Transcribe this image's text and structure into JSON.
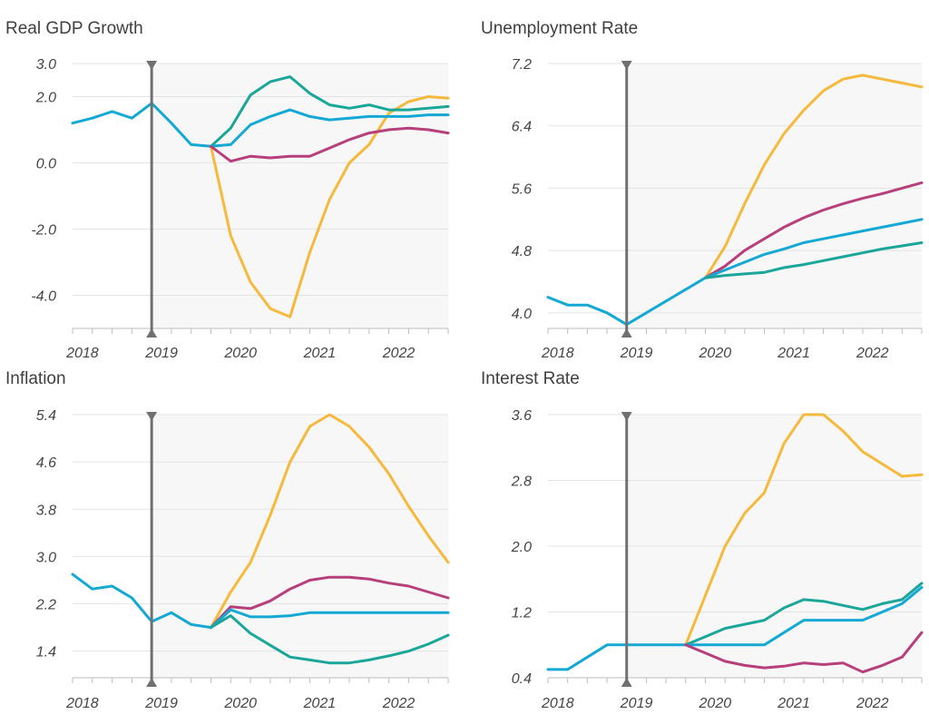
{
  "colors": {
    "yellow": "#f6b93b",
    "teal": "#1aa79a",
    "magenta": "#b73f7c",
    "blue": "#14a9d4",
    "marker": "#707070",
    "shade": "#f7f7f7",
    "grid": "#e3e3e3"
  },
  "chart_data": [
    {
      "type": "line",
      "title": "Real GDP Growth",
      "xlabel": "",
      "ylabel": "",
      "x_labels": [
        "2018",
        "2019",
        "2020",
        "2021",
        "2022"
      ],
      "x_label_positions": [
        0.5,
        4.5,
        8.5,
        12.5,
        16.5
      ],
      "x_count": 20,
      "marker_x": 4,
      "shade_from_x": 4,
      "ylim": [
        -5.0,
        3.0
      ],
      "yticks": [
        3.0,
        2.0,
        0.0,
        -2.0,
        -4.0
      ],
      "ytick_labels": [
        "3.0",
        "2.0",
        "0.0",
        "-2.0",
        "-4.0"
      ],
      "series": [
        {
          "name": "history",
          "color": "blue",
          "start": 0,
          "values": [
            1.2,
            1.35,
            1.55,
            1.35,
            1.8,
            1.2,
            0.55,
            0.5
          ]
        },
        {
          "name": "scenario-yellow",
          "color": "yellow",
          "start": 7,
          "values": [
            0.5,
            -2.2,
            -3.6,
            -4.4,
            -4.65,
            -2.7,
            -1.1,
            0.0,
            0.55,
            1.5,
            1.85,
            2.0,
            1.95
          ]
        },
        {
          "name": "scenario-teal",
          "color": "teal",
          "start": 7,
          "values": [
            0.5,
            1.05,
            2.05,
            2.45,
            2.6,
            2.1,
            1.75,
            1.65,
            1.75,
            1.6,
            1.6,
            1.65,
            1.7
          ]
        },
        {
          "name": "scenario-blue",
          "color": "blue",
          "start": 7,
          "values": [
            0.5,
            0.55,
            1.15,
            1.4,
            1.6,
            1.4,
            1.3,
            1.35,
            1.4,
            1.4,
            1.4,
            1.45,
            1.45
          ]
        },
        {
          "name": "scenario-magenta",
          "color": "magenta",
          "start": 7,
          "values": [
            0.5,
            0.05,
            0.2,
            0.15,
            0.2,
            0.2,
            0.45,
            0.7,
            0.9,
            1.0,
            1.05,
            1.0,
            0.9
          ]
        }
      ]
    },
    {
      "type": "line",
      "title": "Unemployment Rate",
      "xlabel": "",
      "ylabel": "",
      "x_labels": [
        "2018",
        "2019",
        "2020",
        "2021",
        "2022"
      ],
      "x_label_positions": [
        0.5,
        4.5,
        8.5,
        12.5,
        16.5
      ],
      "x_count": 20,
      "marker_x": 4,
      "shade_from_x": 4,
      "ylim": [
        3.8,
        7.2
      ],
      "yticks": [
        7.2,
        6.4,
        5.6,
        4.8,
        4.0
      ],
      "ytick_labels": [
        "7.2",
        "6.4",
        "5.6",
        "4.8",
        "4.0"
      ],
      "series": [
        {
          "name": "history",
          "color": "blue",
          "start": 0,
          "values": [
            4.2,
            4.1,
            4.1,
            4.0,
            3.85,
            4.0,
            4.15,
            4.3,
            4.45
          ]
        },
        {
          "name": "scenario-yellow",
          "color": "yellow",
          "start": 8,
          "values": [
            4.45,
            4.85,
            5.4,
            5.9,
            6.3,
            6.6,
            6.85,
            7.0,
            7.05,
            7.0,
            6.95,
            6.9
          ]
        },
        {
          "name": "scenario-magenta",
          "color": "magenta",
          "start": 8,
          "values": [
            4.45,
            4.6,
            4.8,
            4.95,
            5.1,
            5.22,
            5.32,
            5.4,
            5.47,
            5.53,
            5.6,
            5.67
          ]
        },
        {
          "name": "scenario-blue",
          "color": "blue",
          "start": 8,
          "values": [
            4.45,
            4.55,
            4.65,
            4.75,
            4.82,
            4.9,
            4.95,
            5.0,
            5.05,
            5.1,
            5.15,
            5.2
          ]
        },
        {
          "name": "scenario-teal",
          "color": "teal",
          "start": 8,
          "values": [
            4.45,
            4.48,
            4.5,
            4.52,
            4.58,
            4.62,
            4.67,
            4.72,
            4.77,
            4.82,
            4.86,
            4.9
          ]
        }
      ]
    },
    {
      "type": "line",
      "title": "Inflation",
      "xlabel": "",
      "ylabel": "",
      "x_labels": [
        "2018",
        "2019",
        "2020",
        "2021",
        "2022"
      ],
      "x_label_positions": [
        0.5,
        4.5,
        8.5,
        12.5,
        16.5
      ],
      "x_count": 20,
      "marker_x": 4,
      "shade_from_x": 4,
      "ylim": [
        0.95,
        5.4
      ],
      "yticks": [
        5.4,
        4.6,
        3.8,
        3.0,
        2.2,
        1.4
      ],
      "ytick_labels": [
        "5.4",
        "4.6",
        "3.8",
        "3.0",
        "2.2",
        "1.4"
      ],
      "series": [
        {
          "name": "history",
          "color": "blue",
          "start": 0,
          "values": [
            2.7,
            2.45,
            2.5,
            2.3,
            1.9,
            2.05,
            1.85,
            1.8
          ]
        },
        {
          "name": "scenario-yellow",
          "color": "yellow",
          "start": 7,
          "values": [
            1.8,
            2.4,
            2.9,
            3.7,
            4.6,
            5.2,
            5.4,
            5.2,
            4.85,
            4.4,
            3.85,
            3.35,
            2.9
          ]
        },
        {
          "name": "scenario-magenta",
          "color": "magenta",
          "start": 7,
          "values": [
            1.8,
            2.15,
            2.12,
            2.25,
            2.45,
            2.6,
            2.65,
            2.65,
            2.62,
            2.55,
            2.5,
            2.4,
            2.3
          ]
        },
        {
          "name": "scenario-blue",
          "color": "blue",
          "start": 7,
          "values": [
            1.8,
            2.1,
            1.98,
            1.98,
            2.0,
            2.05,
            2.05,
            2.05,
            2.05,
            2.05,
            2.05,
            2.05,
            2.05
          ]
        },
        {
          "name": "scenario-teal",
          "color": "teal",
          "start": 7,
          "values": [
            1.8,
            2.0,
            1.7,
            1.5,
            1.3,
            1.25,
            1.2,
            1.2,
            1.25,
            1.32,
            1.4,
            1.52,
            1.67
          ]
        }
      ]
    },
    {
      "type": "line",
      "title": "Interest Rate",
      "xlabel": "",
      "ylabel": "",
      "x_labels": [
        "2018",
        "2019",
        "2020",
        "2021",
        "2022"
      ],
      "x_label_positions": [
        0.5,
        4.5,
        8.5,
        12.5,
        16.5
      ],
      "x_count": 20,
      "marker_x": 4,
      "shade_from_x": 4,
      "ylim": [
        0.4,
        3.6
      ],
      "yticks": [
        3.6,
        2.8,
        2.0,
        1.2,
        0.4
      ],
      "ytick_labels": [
        "3.6",
        "2.8",
        "2.0",
        "1.2",
        "0.4"
      ],
      "series": [
        {
          "name": "history",
          "color": "blue",
          "start": 0,
          "values": [
            0.5,
            0.5,
            0.65,
            0.8,
            0.8,
            0.8,
            0.8,
            0.8
          ]
        },
        {
          "name": "scenario-yellow",
          "color": "yellow",
          "start": 7,
          "values": [
            0.8,
            1.4,
            2.0,
            2.4,
            2.65,
            3.25,
            3.6,
            3.6,
            3.4,
            3.15,
            3.0,
            2.85,
            2.87
          ]
        },
        {
          "name": "scenario-teal",
          "color": "teal",
          "start": 7,
          "values": [
            0.8,
            0.9,
            1.0,
            1.05,
            1.1,
            1.25,
            1.35,
            1.33,
            1.28,
            1.23,
            1.3,
            1.35,
            1.55
          ]
        },
        {
          "name": "scenario-blue",
          "color": "blue",
          "start": 7,
          "values": [
            0.8,
            0.8,
            0.8,
            0.8,
            0.8,
            0.95,
            1.1,
            1.1,
            1.1,
            1.1,
            1.2,
            1.3,
            1.5
          ]
        },
        {
          "name": "scenario-magenta",
          "color": "magenta",
          "start": 7,
          "values": [
            0.8,
            0.7,
            0.6,
            0.55,
            0.52,
            0.54,
            0.58,
            0.56,
            0.58,
            0.47,
            0.55,
            0.65,
            0.95
          ]
        }
      ]
    }
  ]
}
